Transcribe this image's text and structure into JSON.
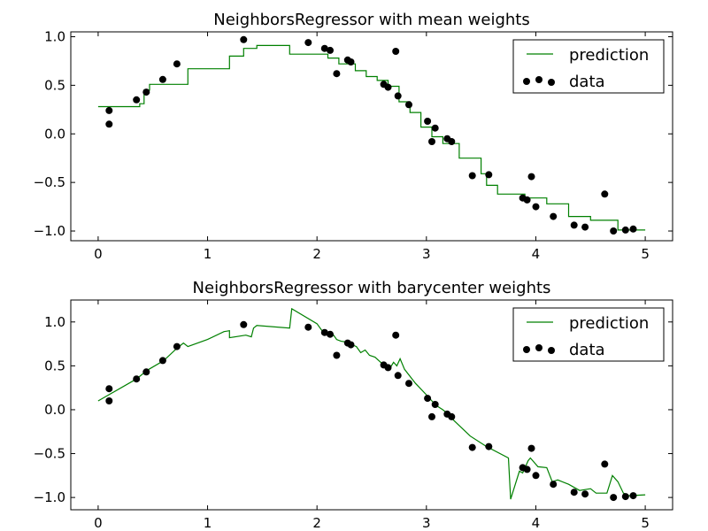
{
  "chart_data": [
    {
      "type": "line",
      "title": "NeighborsRegressor with mean weights",
      "xlim": [
        -0.25,
        5.25
      ],
      "ylim": [
        -1.1,
        1.05
      ],
      "xticks": [
        0,
        1,
        2,
        3,
        4,
        5
      ],
      "yticks": [
        1.0,
        0.5,
        0.0,
        -0.5,
        -1.0
      ],
      "xtick_labels": [
        "0",
        "1",
        "2",
        "3",
        "4",
        "5"
      ],
      "ytick_labels": [
        "1.0",
        "0.5",
        "0.0",
        "−0.5",
        "−1.0"
      ],
      "legend": {
        "position": "upper right",
        "entries": [
          "prediction",
          "data"
        ]
      },
      "series": [
        {
          "name": "prediction",
          "kind": "line",
          "color": "#008000",
          "x": [
            0,
            0.38,
            0.38,
            0.42,
            0.42,
            0.47,
            0.47,
            0.82,
            0.82,
            1.2,
            1.2,
            1.33,
            1.33,
            1.45,
            1.45,
            1.75,
            1.75,
            2.1,
            2.1,
            2.2,
            2.2,
            2.35,
            2.35,
            2.45,
            2.45,
            2.55,
            2.55,
            2.65,
            2.65,
            2.75,
            2.75,
            2.85,
            2.85,
            2.95,
            2.95,
            3.05,
            3.05,
            3.15,
            3.15,
            3.3,
            3.3,
            3.5,
            3.5,
            3.55,
            3.55,
            3.65,
            3.65,
            3.9,
            3.9,
            4.1,
            4.1,
            4.3,
            4.3,
            4.5,
            4.5,
            4.75,
            4.75,
            5
          ],
          "y": [
            0.28,
            0.28,
            0.31,
            0.31,
            0.45,
            0.45,
            0.51,
            0.51,
            0.67,
            0.67,
            0.8,
            0.8,
            0.88,
            0.88,
            0.91,
            0.91,
            0.82,
            0.82,
            0.78,
            0.78,
            0.72,
            0.72,
            0.65,
            0.65,
            0.59,
            0.59,
            0.55,
            0.55,
            0.49,
            0.49,
            0.33,
            0.33,
            0.22,
            0.22,
            0.07,
            0.07,
            -0.03,
            -0.03,
            -0.1,
            -0.1,
            -0.25,
            -0.25,
            -0.41,
            -0.41,
            -0.53,
            -0.53,
            -0.62,
            -0.62,
            -0.66,
            -0.66,
            -0.72,
            -0.72,
            -0.85,
            -0.85,
            -0.89,
            -0.89,
            -0.99,
            -0.99
          ]
        },
        {
          "name": "data",
          "kind": "scatter",
          "color": "#000000",
          "x": [
            0.1,
            0.1,
            0.35,
            0.44,
            0.59,
            0.72,
            1.33,
            1.92,
            2.07,
            2.12,
            2.18,
            2.28,
            2.31,
            2.61,
            2.65,
            2.72,
            2.74,
            2.84,
            3.01,
            3.05,
            3.08,
            3.19,
            3.23,
            3.42,
            3.57,
            3.88,
            3.92,
            3.96,
            4.0,
            4.16,
            4.35,
            4.45,
            4.63,
            4.71,
            4.82,
            4.89
          ],
          "y": [
            0.24,
            0.1,
            0.35,
            0.43,
            0.56,
            0.72,
            0.97,
            0.94,
            0.88,
            0.86,
            0.62,
            0.76,
            0.74,
            0.51,
            0.48,
            0.85,
            0.39,
            0.3,
            0.13,
            -0.08,
            0.06,
            -0.05,
            -0.08,
            -0.43,
            -0.42,
            -0.66,
            -0.68,
            -0.44,
            -0.75,
            -0.85,
            -0.94,
            -0.96,
            -0.62,
            -1.0,
            -0.99,
            -0.98
          ]
        }
      ]
    },
    {
      "type": "line",
      "title": "NeighborsRegressor with barycenter weights",
      "xlim": [
        -0.25,
        5.25
      ],
      "ylim": [
        -1.14,
        1.25
      ],
      "xticks": [
        0,
        1,
        2,
        3,
        4,
        5
      ],
      "yticks": [
        1.0,
        0.5,
        0.0,
        -0.5,
        -1.0
      ],
      "xtick_labels": [
        "0",
        "1",
        "2",
        "3",
        "4",
        "5"
      ],
      "ytick_labels": [
        "1.0",
        "0.5",
        "0.0",
        "−0.5",
        "−1.0"
      ],
      "legend": {
        "position": "upper right",
        "entries": [
          "prediction",
          "data"
        ]
      },
      "series": [
        {
          "name": "prediction",
          "kind": "line",
          "color": "#008000",
          "x": [
            0,
            0.35,
            0.45,
            0.6,
            0.72,
            0.78,
            0.82,
            1.0,
            1.15,
            1.2,
            1.2,
            1.35,
            1.4,
            1.42,
            1.45,
            1.75,
            1.77,
            2.0,
            2.07,
            2.12,
            2.14,
            2.18,
            2.22,
            2.28,
            2.32,
            2.36,
            2.4,
            2.44,
            2.48,
            2.53,
            2.6,
            2.62,
            2.66,
            2.7,
            2.73,
            2.76,
            2.8,
            2.9,
            3.0,
            3.05,
            3.1,
            3.15,
            3.2,
            3.25,
            3.4,
            3.55,
            3.75,
            3.77,
            3.85,
            3.88,
            3.93,
            3.95,
            4.02,
            4.1,
            4.15,
            4.2,
            4.3,
            4.4,
            4.5,
            4.55,
            4.65,
            4.7,
            4.75,
            4.8,
            4.85,
            5.0
          ],
          "y": [
            0.1,
            0.35,
            0.45,
            0.56,
            0.7,
            0.76,
            0.72,
            0.8,
            0.89,
            0.9,
            0.82,
            0.85,
            0.83,
            0.93,
            0.96,
            0.93,
            1.15,
            0.98,
            0.86,
            0.88,
            0.87,
            0.8,
            0.78,
            0.77,
            0.74,
            0.72,
            0.65,
            0.68,
            0.62,
            0.6,
            0.52,
            0.52,
            0.46,
            0.54,
            0.5,
            0.58,
            0.46,
            0.3,
            0.17,
            0.1,
            0.04,
            0.0,
            -0.05,
            -0.12,
            -0.3,
            -0.42,
            -0.55,
            -1.02,
            -0.7,
            -0.72,
            -0.58,
            -0.55,
            -0.65,
            -0.66,
            -0.82,
            -0.8,
            -0.85,
            -0.92,
            -0.9,
            -0.95,
            -0.95,
            -0.75,
            -0.82,
            -0.95,
            -0.98,
            -0.97
          ]
        },
        {
          "name": "data",
          "kind": "scatter",
          "color": "#000000",
          "x": [
            0.1,
            0.1,
            0.35,
            0.44,
            0.59,
            0.72,
            1.33,
            1.92,
            2.07,
            2.12,
            2.18,
            2.28,
            2.31,
            2.61,
            2.65,
            2.72,
            2.74,
            2.84,
            3.01,
            3.05,
            3.08,
            3.19,
            3.23,
            3.42,
            3.57,
            3.88,
            3.92,
            3.96,
            4.0,
            4.16,
            4.35,
            4.45,
            4.63,
            4.71,
            4.82,
            4.89
          ],
          "y": [
            0.24,
            0.1,
            0.35,
            0.43,
            0.56,
            0.72,
            0.97,
            0.94,
            0.88,
            0.86,
            0.62,
            0.76,
            0.74,
            0.51,
            0.48,
            0.85,
            0.39,
            0.3,
            0.13,
            -0.08,
            0.06,
            -0.05,
            -0.08,
            -0.43,
            -0.42,
            -0.66,
            -0.68,
            -0.44,
            -0.75,
            -0.85,
            -0.94,
            -0.96,
            -0.62,
            -1.0,
            -0.99,
            -0.98
          ]
        }
      ]
    }
  ]
}
